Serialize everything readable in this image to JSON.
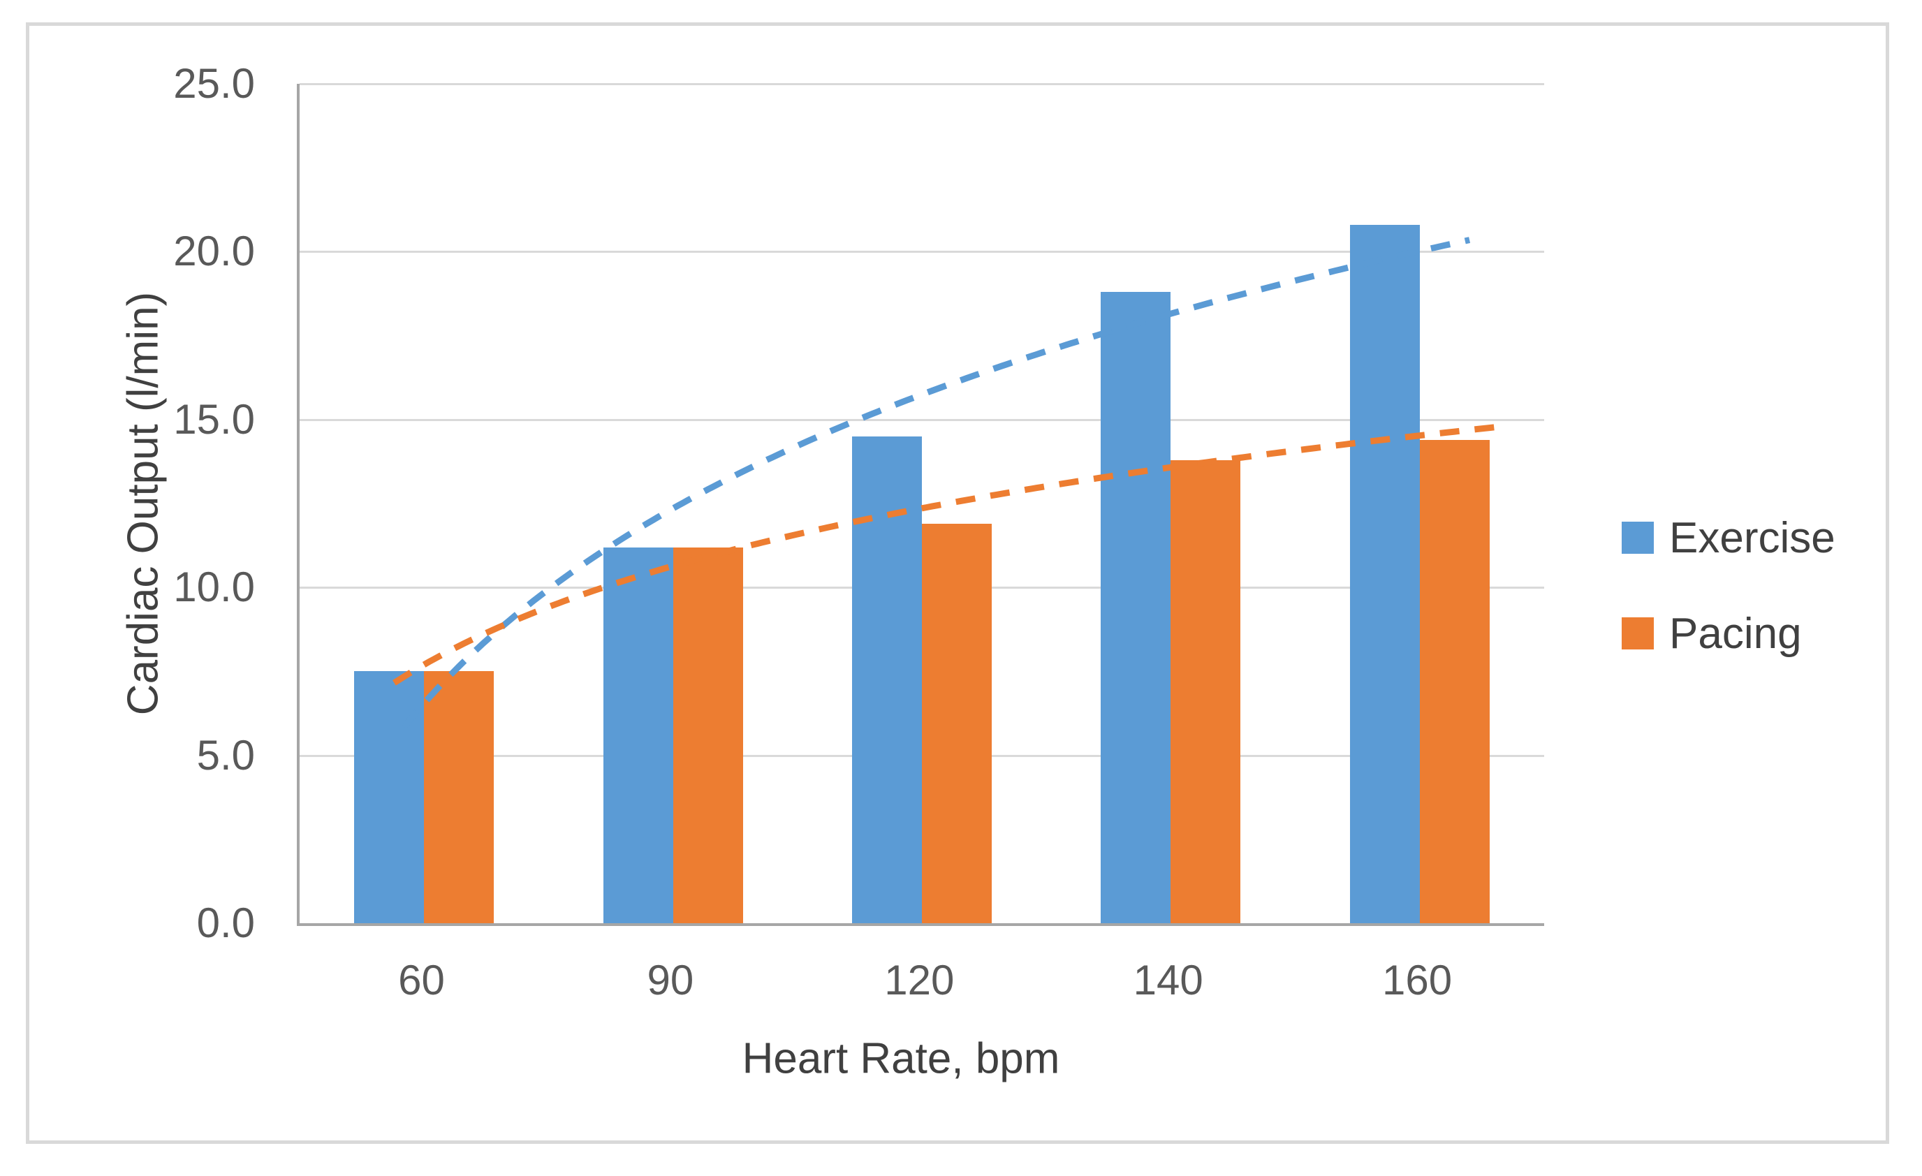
{
  "chart_data": {
    "type": "bar",
    "title": "",
    "categories": [
      "60",
      "90",
      "120",
      "140",
      "160"
    ],
    "series": [
      {
        "name": "Exercise",
        "color": "#5B9BD5",
        "values": [
          7.5,
          11.2,
          14.5,
          18.8,
          20.8
        ]
      },
      {
        "name": "Pacing",
        "color": "#ED7D31",
        "values": [
          7.5,
          11.2,
          11.9,
          13.8,
          14.4
        ]
      }
    ],
    "trendlines": [
      {
        "series": "Exercise",
        "type": "logarithmic",
        "color": "#5B9BD5",
        "a": 6.55,
        "b": 8.37,
        "i_start": 0.92,
        "i_end": 5.2,
        "dash": "28 22",
        "width": 9
      },
      {
        "series": "Pacing",
        "type": "logarithmic",
        "color": "#ED7D31",
        "a": 7.7,
        "b": 4.24,
        "i_start": 0.88,
        "i_end": 5.3,
        "dash": "28 22",
        "width": 9
      }
    ],
    "xlabel": "Heart Rate, bpm",
    "ylabel": "Cardiac Output (l/min)",
    "ylim": [
      0,
      25
    ],
    "ytick_step": 5,
    "yticks": [
      "25.0",
      "20.0",
      "15.0",
      "10.0",
      "5.0",
      "0.0"
    ],
    "grid": true,
    "legend_position": "right"
  },
  "legend": {
    "items": [
      {
        "label": "Exercise",
        "color": "#5B9BD5"
      },
      {
        "label": "Pacing",
        "color": "#ED7D31"
      }
    ]
  },
  "colors": {
    "grid": "#d9d9d9",
    "axis": "#a6a6a6",
    "tick_text": "#595959",
    "title_text": "#404040",
    "figure_border": "#d9d9d9",
    "background": "#ffffff"
  }
}
